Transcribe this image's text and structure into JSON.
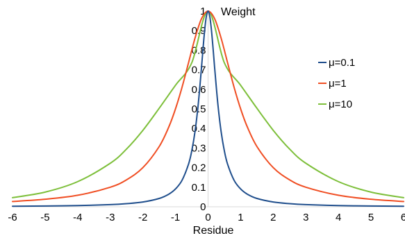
{
  "chart_data": {
    "type": "line",
    "xlabel": "Residue",
    "ylabel": "Weight",
    "xlim": [
      -6,
      6
    ],
    "ylim": [
      0,
      1
    ],
    "xticks": [
      "-6",
      "-5",
      "-4",
      "-3",
      "-2",
      "-1",
      "0",
      "1",
      "2",
      "3",
      "4",
      "5",
      "6"
    ],
    "yticks": [
      "0",
      "0.1",
      "0.2",
      "0.3",
      "0.4",
      "0.5",
      "0.6",
      "0.7",
      "0.8",
      "0.9",
      "1"
    ],
    "grid": false,
    "legend_position": "right",
    "series": [
      {
        "name": "μ=0.1",
        "color": "#1f4e8c",
        "x": [
          -6,
          -5,
          -4,
          -3,
          -2.5,
          -2,
          -1.5,
          -1.2,
          -1,
          -0.8,
          -0.6,
          -0.5,
          -0.4,
          -0.3,
          -0.2,
          -0.15,
          -0.1,
          -0.05,
          0,
          0.05,
          0.1,
          0.15,
          0.2,
          0.3,
          0.4,
          0.5,
          0.6,
          0.8,
          1,
          1.2,
          1.5,
          2,
          2.5,
          3,
          4,
          5,
          6
        ],
        "y": [
          0.0028,
          0.004,
          0.0062,
          0.011,
          0.016,
          0.0244,
          0.0426,
          0.0649,
          0.0909,
          0.135,
          0.2174,
          0.2857,
          0.3846,
          0.5263,
          0.7143,
          0.8163,
          0.9091,
          0.9756,
          1,
          0.9756,
          0.9091,
          0.8163,
          0.7143,
          0.5263,
          0.3846,
          0.2857,
          0.2174,
          0.135,
          0.0909,
          0.0649,
          0.0426,
          0.0244,
          0.016,
          0.011,
          0.0062,
          0.004,
          0.0028
        ]
      },
      {
        "name": "μ=1",
        "color": "#f04e23",
        "x": [
          -6,
          -5,
          -4,
          -3,
          -2.5,
          -2,
          -1.5,
          -1.2,
          -1,
          -0.8,
          -0.6,
          -0.4,
          -0.2,
          0,
          0.2,
          0.4,
          0.6,
          0.8,
          1,
          1.2,
          1.5,
          2,
          2.5,
          3,
          4,
          5,
          6
        ],
        "y": [
          0.027,
          0.0385,
          0.0588,
          0.1,
          0.1379,
          0.2,
          0.3077,
          0.4098,
          0.5,
          0.6098,
          0.7353,
          0.8621,
          0.9615,
          1,
          0.9615,
          0.8621,
          0.7353,
          0.6098,
          0.5,
          0.4098,
          0.3077,
          0.2,
          0.1379,
          0.1,
          0.0588,
          0.0385,
          0.027
        ]
      },
      {
        "name": "μ=10",
        "color": "#7dbf3a",
        "x": [
          -6,
          -5,
          -4,
          -3,
          -2.5,
          -2,
          -1.5,
          -1,
          -0.5,
          0,
          0.5,
          1,
          1.5,
          2,
          2.5,
          3,
          4,
          5,
          6
        ],
        "y": [
          0.0467,
          0.075,
          0.1285,
          0.2225,
          0.2953,
          0.3906,
          0.5033,
          0.6209,
          0.7358,
          1,
          0.7358,
          0.6209,
          0.5033,
          0.3906,
          0.2953,
          0.2225,
          0.1285,
          0.075,
          0.0467
        ]
      }
    ]
  }
}
